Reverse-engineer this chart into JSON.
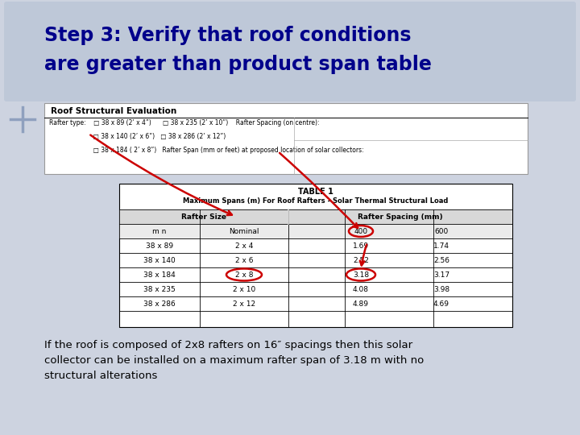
{
  "background_color": "#cdd3e0",
  "title_line1": "Step 3: Verify that roof conditions",
  "title_line2": "are greater than product span table",
  "title_color": "#00008B",
  "title_fontsize": 17,
  "body_text": "If the roof is composed of 2x8 rafters on 16″ spacings then this solar\ncollector can be installed on a maximum rafter span of 3.18 m with no\nstructural alterations",
  "body_fontsize": 9.5,
  "table_header": "Roof Structural Evaluation",
  "table1_title": "TABLE 1",
  "table1_subtitle": "Maximum Spans (m) For Roof Rafters - Solar Thermal Structural Load",
  "col_subheaders": [
    "m n",
    "Nominal",
    "400",
    "600"
  ],
  "rows": [
    [
      "38 x 89",
      "2 x 4",
      "1.69",
      "1.74"
    ],
    [
      "38 x 140",
      "2 x 6",
      "2.52",
      "2.56"
    ],
    [
      "38 x 184",
      "2 x 8",
      "3.18",
      "3.17"
    ],
    [
      "38 x 235",
      "2 x 10",
      "4.08",
      "3.98"
    ],
    [
      "38 x 286",
      "2 x 12",
      "4.89",
      "4.69"
    ]
  ],
  "highlight_row": 2,
  "circle_color": "#cc0000",
  "arrow_color": "#cc0000",
  "form_line1": "Rafter type:    □ 38 x 89 (2’ x 4”)      □ 38 x 235 (2’ x 10”)    Rafter Spacing (on centre):",
  "form_line2": "                       □ 38 x 140 (2’ x 6”)   □ 38 x 286 (2’ x 12”)",
  "form_line3": "                       □ 38 x 184 ( 2’ x 8”)   Rafter Span (mm or feet) at proposed location of solar collectors:"
}
